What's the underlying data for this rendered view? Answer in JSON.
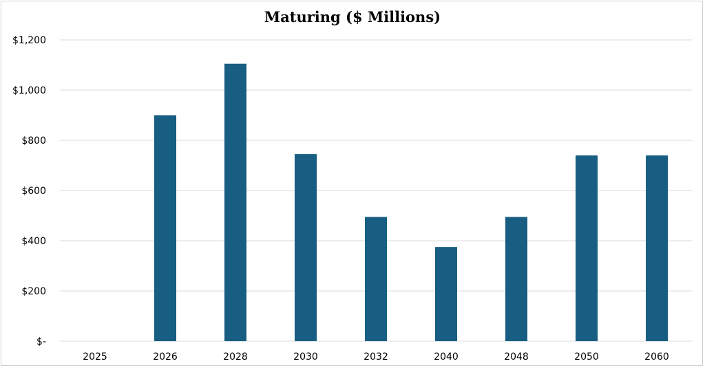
{
  "chart_data": {
    "type": "bar",
    "title": "Maturing ($ Millions)",
    "categories": [
      "2025",
      "2026",
      "2028",
      "2030",
      "2032",
      "2040",
      "2048",
      "2050",
      "2060"
    ],
    "values": [
      0,
      900,
      1105,
      745,
      495,
      375,
      495,
      740,
      740
    ],
    "ylim": [
      0,
      1200
    ],
    "yticks": [
      0,
      200,
      400,
      600,
      800,
      1000,
      1200
    ],
    "ytick_labels": [
      "$-",
      "$200",
      "$400",
      "$600",
      "$800",
      "$1,000",
      "$1,200"
    ],
    "xlabel": "",
    "ylabel": "",
    "grid": true,
    "legend": "none",
    "bar_color": "#175e82",
    "grid_color": "#d9d9d9"
  }
}
